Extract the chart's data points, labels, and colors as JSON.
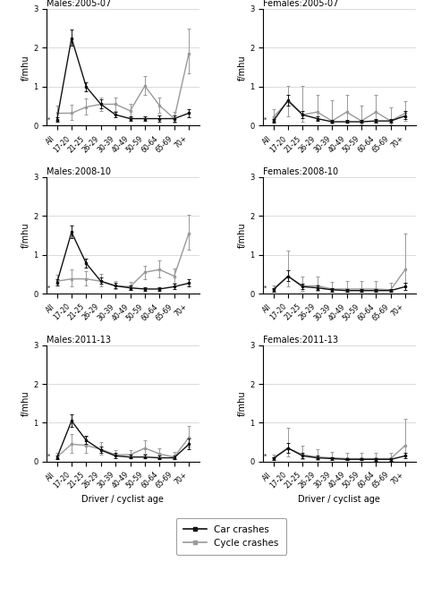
{
  "categories": [
    "All",
    "17-20",
    "21-25",
    "26-29",
    "30-39",
    "40-49",
    "50-59",
    "60-64",
    "65-69",
    "70+"
  ],
  "panels": [
    {
      "title": "Males:2005-07",
      "car_y": [
        0.15,
        2.25,
        1.0,
        0.55,
        0.28,
        0.18,
        0.18,
        0.18,
        0.18,
        0.32
      ],
      "car_lo": [
        0.1,
        2.05,
        0.88,
        0.44,
        0.22,
        0.12,
        0.12,
        0.11,
        0.11,
        0.22
      ],
      "car_hi": [
        0.22,
        2.48,
        1.12,
        0.67,
        0.36,
        0.25,
        0.25,
        0.26,
        0.26,
        0.43
      ],
      "cyc_y": [
        0.32,
        0.32,
        0.48,
        0.55,
        0.55,
        0.38,
        1.02,
        0.52,
        0.18,
        1.85
      ],
      "cyc_lo": [
        0.15,
        0.14,
        0.28,
        0.38,
        0.38,
        0.22,
        0.78,
        0.32,
        0.08,
        1.35
      ],
      "cyc_hi": [
        0.52,
        0.54,
        0.7,
        0.72,
        0.72,
        0.56,
        1.28,
        0.72,
        0.35,
        2.5
      ],
      "col": 0,
      "row": 0
    },
    {
      "title": "Females:2005-07",
      "car_y": [
        0.12,
        0.65,
        0.28,
        0.18,
        0.1,
        0.1,
        0.1,
        0.12,
        0.12,
        0.25
      ],
      "car_lo": [
        0.07,
        0.52,
        0.2,
        0.12,
        0.07,
        0.07,
        0.07,
        0.08,
        0.08,
        0.16
      ],
      "car_hi": [
        0.18,
        0.8,
        0.37,
        0.25,
        0.15,
        0.15,
        0.15,
        0.18,
        0.18,
        0.37
      ],
      "cyc_y": [
        0.22,
        0.62,
        0.28,
        0.35,
        0.12,
        0.35,
        0.12,
        0.35,
        0.12,
        0.32
      ],
      "cyc_lo": [
        0.1,
        0.25,
        0.1,
        0.15,
        0.05,
        0.12,
        0.04,
        0.1,
        0.04,
        0.12
      ],
      "cyc_hi": [
        0.42,
        1.02,
        1.02,
        0.8,
        0.65,
        0.78,
        0.52,
        0.8,
        0.48,
        0.62
      ],
      "col": 1,
      "row": 0
    },
    {
      "title": "Males:2008-10",
      "car_y": [
        0.28,
        1.58,
        0.78,
        0.32,
        0.2,
        0.15,
        0.12,
        0.12,
        0.18,
        0.27
      ],
      "car_lo": [
        0.2,
        1.42,
        0.66,
        0.25,
        0.15,
        0.1,
        0.08,
        0.08,
        0.12,
        0.19
      ],
      "car_hi": [
        0.38,
        1.75,
        0.9,
        0.41,
        0.27,
        0.21,
        0.17,
        0.17,
        0.25,
        0.37
      ],
      "cyc_y": [
        0.32,
        0.38,
        0.38,
        0.32,
        0.2,
        0.18,
        0.55,
        0.62,
        0.45,
        1.55
      ],
      "cyc_lo": [
        0.2,
        0.18,
        0.2,
        0.18,
        0.12,
        0.1,
        0.38,
        0.42,
        0.28,
        1.12
      ],
      "cyc_hi": [
        0.48,
        0.62,
        0.58,
        0.5,
        0.32,
        0.3,
        0.72,
        0.85,
        0.65,
        2.02
      ],
      "col": 0,
      "row": 1
    },
    {
      "title": "Females:2008-10",
      "car_y": [
        0.1,
        0.45,
        0.18,
        0.15,
        0.1,
        0.08,
        0.08,
        0.08,
        0.08,
        0.18
      ],
      "car_lo": [
        0.06,
        0.32,
        0.12,
        0.1,
        0.06,
        0.05,
        0.05,
        0.04,
        0.04,
        0.1
      ],
      "car_hi": [
        0.15,
        0.6,
        0.26,
        0.22,
        0.15,
        0.12,
        0.12,
        0.13,
        0.13,
        0.28
      ],
      "cyc_y": [
        0.12,
        0.45,
        0.2,
        0.2,
        0.12,
        0.12,
        0.12,
        0.12,
        0.1,
        0.62
      ],
      "cyc_lo": [
        0.06,
        0.18,
        0.08,
        0.08,
        0.06,
        0.06,
        0.06,
        0.05,
        0.04,
        0.28
      ],
      "cyc_hi": [
        0.22,
        1.1,
        0.45,
        0.45,
        0.3,
        0.32,
        0.32,
        0.32,
        0.28,
        1.55
      ],
      "col": 1,
      "row": 1
    },
    {
      "title": "Males:2011-13",
      "car_y": [
        0.1,
        1.05,
        0.55,
        0.3,
        0.15,
        0.12,
        0.12,
        0.1,
        0.1,
        0.45
      ],
      "car_lo": [
        0.07,
        0.9,
        0.45,
        0.22,
        0.1,
        0.08,
        0.08,
        0.06,
        0.06,
        0.32
      ],
      "car_hi": [
        0.15,
        1.22,
        0.67,
        0.39,
        0.22,
        0.18,
        0.18,
        0.15,
        0.15,
        0.6
      ],
      "cyc_y": [
        0.12,
        0.45,
        0.42,
        0.32,
        0.18,
        0.18,
        0.35,
        0.2,
        0.12,
        0.62
      ],
      "cyc_lo": [
        0.06,
        0.22,
        0.22,
        0.18,
        0.1,
        0.1,
        0.2,
        0.1,
        0.06,
        0.38
      ],
      "cyc_hi": [
        0.22,
        0.72,
        0.65,
        0.5,
        0.3,
        0.3,
        0.55,
        0.35,
        0.25,
        0.92
      ],
      "col": 0,
      "row": 2
    },
    {
      "title": "Females:2011-13",
      "car_y": [
        0.08,
        0.35,
        0.15,
        0.1,
        0.08,
        0.06,
        0.06,
        0.06,
        0.06,
        0.15
      ],
      "car_lo": [
        0.05,
        0.24,
        0.1,
        0.07,
        0.05,
        0.04,
        0.04,
        0.03,
        0.03,
        0.09
      ],
      "car_hi": [
        0.12,
        0.48,
        0.22,
        0.15,
        0.12,
        0.1,
        0.1,
        0.1,
        0.1,
        0.24
      ],
      "cyc_y": [
        0.1,
        0.35,
        0.18,
        0.12,
        0.1,
        0.08,
        0.08,
        0.08,
        0.08,
        0.42
      ],
      "cyc_lo": [
        0.05,
        0.14,
        0.07,
        0.05,
        0.04,
        0.04,
        0.04,
        0.03,
        0.03,
        0.16
      ],
      "cyc_hi": [
        0.18,
        0.88,
        0.42,
        0.32,
        0.25,
        0.22,
        0.22,
        0.22,
        0.22,
        1.1
      ],
      "col": 1,
      "row": 2
    }
  ],
  "car_color": "#111111",
  "cyc_color": "#999999",
  "xlabel": "Driver / cyclist age",
  "ylabel": "f/mhu",
  "ylim": [
    0,
    3
  ],
  "yticks": [
    0,
    1,
    2,
    3
  ],
  "legend_car": "Car crashes",
  "legend_cyc": "Cycle crashes",
  "background_color": "#ffffff",
  "grid_color": "#cccccc"
}
